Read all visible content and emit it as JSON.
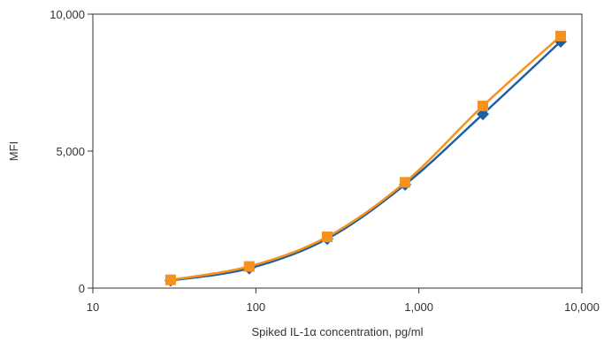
{
  "chart_data": {
    "type": "line",
    "xlabel": "Spiked IL-1α concentration, pg/ml",
    "ylabel": "MFI",
    "xscale": "log",
    "xlim": [
      10,
      10000
    ],
    "ylim": [
      0,
      10000
    ],
    "xticks": [
      10,
      100,
      1000,
      10000
    ],
    "xtick_labels": [
      "10",
      "100",
      "1,000",
      "10,000"
    ],
    "yticks": [
      0,
      5000,
      10000
    ],
    "ytick_labels": [
      "0",
      "5,000",
      "10,000"
    ],
    "grid": false,
    "series": [
      {
        "marker": "diamond",
        "color": "#1f5fa0",
        "x": [
          30,
          91,
          274,
          823,
          2469,
          7407
        ],
        "y": [
          280,
          720,
          1800,
          3780,
          6350,
          9000
        ]
      },
      {
        "marker": "square",
        "color": "#f5921e",
        "x": [
          30,
          91,
          274,
          823,
          2469,
          7407
        ],
        "y": [
          300,
          790,
          1870,
          3860,
          6650,
          9200
        ]
      }
    ]
  }
}
